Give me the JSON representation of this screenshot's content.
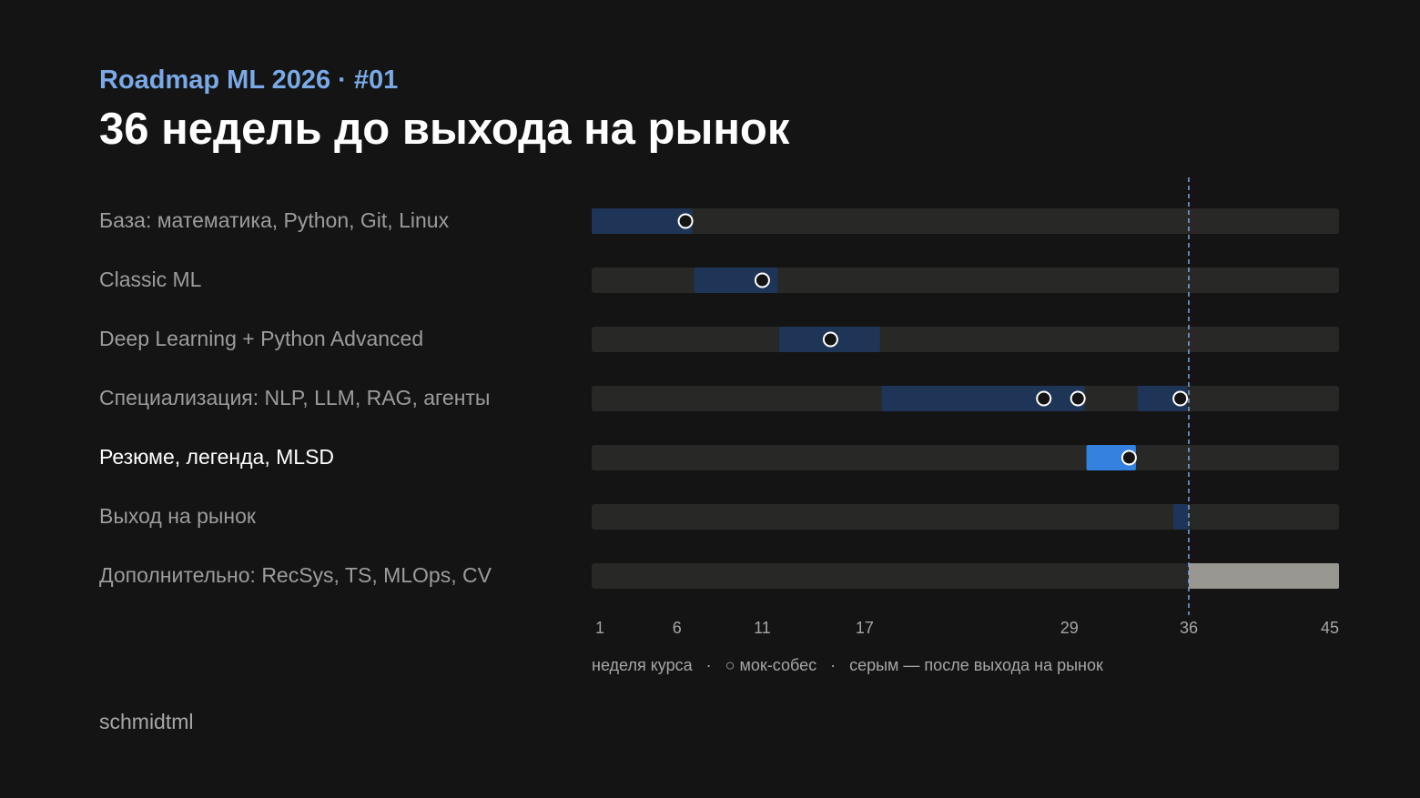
{
  "header": {
    "kicker": "Roadmap ML 2026 · #01",
    "title": "36 недель до выхода на рынок"
  },
  "footer": {
    "author": "schmidtml"
  },
  "colors": {
    "background": "#141414",
    "track": "#282827",
    "phase": "#1f3557",
    "phase_active": "#3481e0",
    "after_market": "#989792",
    "label": "#9c9c9c",
    "label_active": "#ffffff",
    "marker": "#7aa9e6",
    "axis_text": "#a6a6a6"
  },
  "chart_data": {
    "type": "gantt",
    "x_axis": {
      "label": "неделя курса",
      "range": [
        1,
        45
      ],
      "ticks": [
        1,
        6,
        11,
        17,
        29,
        36,
        45
      ]
    },
    "reference_line": {
      "x": 36,
      "style": "dashed"
    },
    "legend": [
      {
        "symbol": "○",
        "text": "мок-собес"
      },
      {
        "text": "серым — после выхода на рынок"
      }
    ],
    "rows": [
      {
        "label": "База: математика, Python, Git, Linux",
        "active": false,
        "segments": [
          {
            "start": 1,
            "end": 6.9,
            "style": "phase"
          }
        ],
        "mocks": [
          6.5
        ]
      },
      {
        "label": "Classic ML",
        "active": false,
        "segments": [
          {
            "start": 7,
            "end": 11.9,
            "style": "phase"
          }
        ],
        "mocks": [
          11
        ]
      },
      {
        "label": "Deep Learning + Python Advanced",
        "active": false,
        "segments": [
          {
            "start": 12,
            "end": 17.9,
            "style": "phase"
          }
        ],
        "mocks": [
          15
        ]
      },
      {
        "label": "Специализация: NLP, LLM, RAG, агенты",
        "active": false,
        "segments": [
          {
            "start": 18,
            "end": 29.9,
            "style": "phase"
          },
          {
            "start": 33,
            "end": 35.9,
            "style": "phase"
          }
        ],
        "mocks": [
          27.5,
          29.5,
          35.5
        ]
      },
      {
        "label": "Резюме, легенда, MLSD",
        "active": true,
        "segments": [
          {
            "start": 30,
            "end": 32.9,
            "style": "phase_active"
          }
        ],
        "mocks": [
          32.5
        ]
      },
      {
        "label": "Выход на рынок",
        "active": false,
        "segments": [
          {
            "start": 35.1,
            "end": 36,
            "style": "phase"
          }
        ],
        "mocks": []
      },
      {
        "label": "Дополнительно: RecSys, TS, MLOps, CV",
        "active": false,
        "segments": [
          {
            "start": 36,
            "end": 45,
            "style": "after_market"
          }
        ],
        "mocks": []
      }
    ]
  }
}
